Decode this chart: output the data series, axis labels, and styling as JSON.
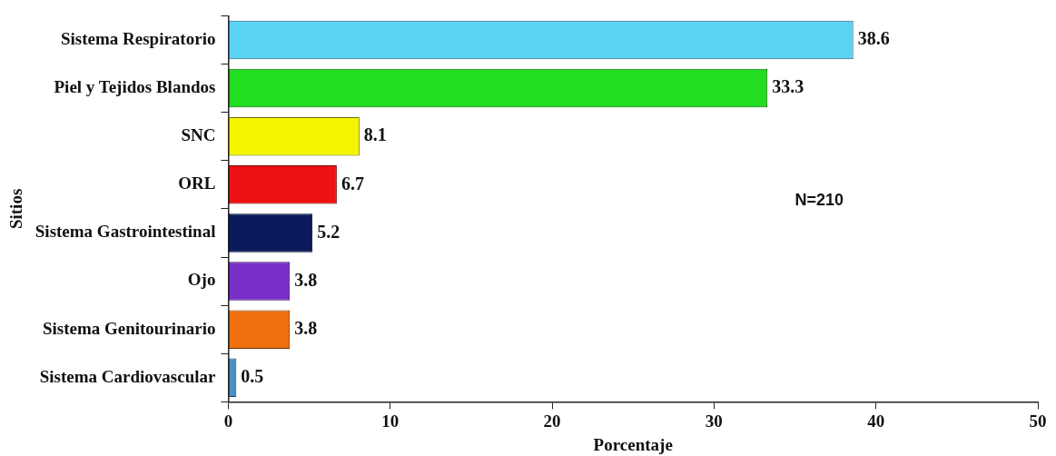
{
  "chart_data": {
    "type": "bar",
    "orientation": "horizontal",
    "xlabel": "Porcentaje",
    "ylabel": "Sitios",
    "categories": [
      "Sistema Respiratorio",
      "Piel y Tejidos Blandos",
      "SNC",
      "ORL",
      "Sistema Gastrointestinal",
      "Ojo",
      "Sistema Genitourinario",
      "Sistema Cardiovascular"
    ],
    "values": [
      38.6,
      33.3,
      8.1,
      6.7,
      5.2,
      3.8,
      3.8,
      0.5
    ],
    "colors": [
      "#5bd3f5",
      "#22dd22",
      "#f5f500",
      "#ee1111",
      "#0a1a5a",
      "#7a2ec8",
      "#f07010",
      "#4a90c0"
    ],
    "xlim": [
      0,
      50
    ],
    "xticks": [
      0,
      10,
      20,
      30,
      40,
      50
    ],
    "grid": false,
    "legend": false,
    "data_labels": true,
    "annotations": [
      "N=210"
    ]
  }
}
